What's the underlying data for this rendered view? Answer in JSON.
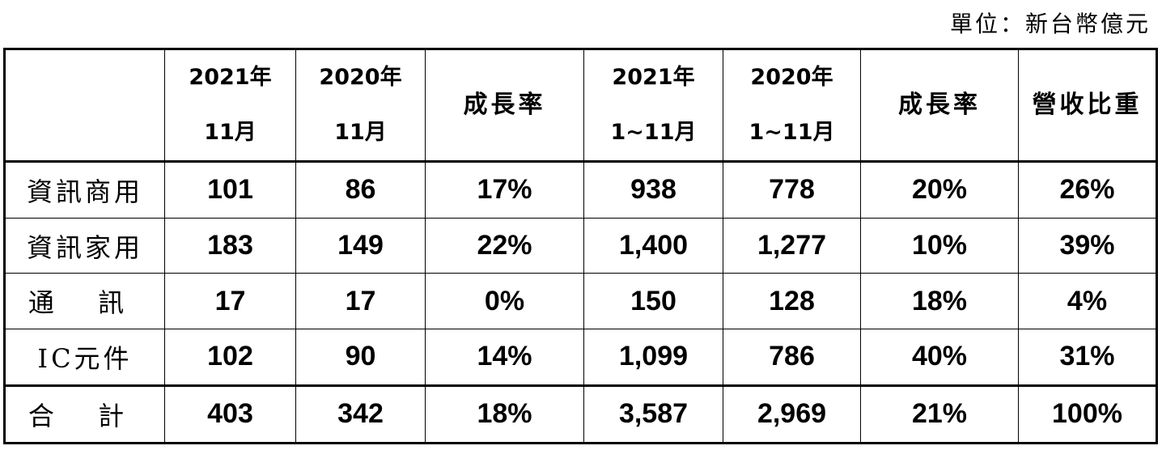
{
  "unit_note": "單位：新台幣億元",
  "columns": [
    {
      "line1": "",
      "line2": ""
    },
    {
      "line1": "2021年",
      "line2": "11月"
    },
    {
      "line1": "2020年",
      "line2": "11月"
    },
    {
      "line1": "成長率",
      "line2": ""
    },
    {
      "line1": "2021年",
      "line2": "1~11月"
    },
    {
      "line1": "2020年",
      "line2": "1~11月"
    },
    {
      "line1": "成長率",
      "line2": ""
    },
    {
      "line1": "營收比重",
      "line2": ""
    }
  ],
  "rows": [
    {
      "label": "資訊商用",
      "values": [
        "101",
        "86",
        "17%",
        "938",
        "778",
        "20%",
        "26%"
      ]
    },
    {
      "label": "資訊家用",
      "values": [
        "183",
        "149",
        "22%",
        "1,400",
        "1,277",
        "10%",
        "39%"
      ]
    },
    {
      "label": "通 訊",
      "values": [
        "17",
        "17",
        "0%",
        "150",
        "128",
        "18%",
        "4%"
      ]
    },
    {
      "label": "IC元件",
      "values": [
        "102",
        "90",
        "14%",
        "1,099",
        "786",
        "40%",
        "31%"
      ]
    }
  ],
  "total": {
    "label": "合 計",
    "values": [
      "403",
      "342",
      "18%",
      "3,587",
      "2,969",
      "21%",
      "100%"
    ]
  }
}
